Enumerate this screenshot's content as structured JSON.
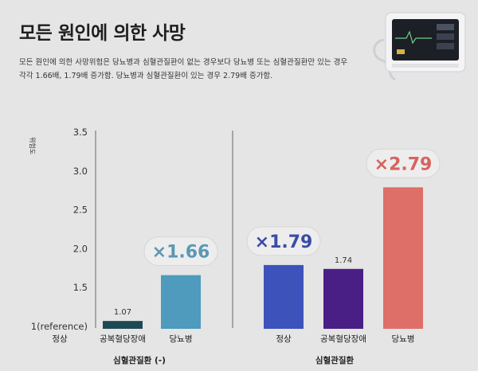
{
  "header": {
    "title": "모든 원인에 의한 사망",
    "description_line1": "모든 원인에 의한 사망위험은 당뇨병과 심혈관질환이 없는 경우보다 당뇨병 또는 심혈관질환만 있는 경우",
    "description_line2": "각각 1.66배, 1.79배 증가함. 당뇨병과 심혈관질환이 있는 경우 2.79배 증가함."
  },
  "chart_data": {
    "type": "bar",
    "title": "",
    "ylabel": "위험도",
    "ylim": [
      1,
      3.5
    ],
    "yticks": [
      "1(reference)",
      "1.5",
      "2.0",
      "2.5",
      "3.0",
      "3.5"
    ],
    "ytick_values": [
      1,
      1.5,
      2.0,
      2.5,
      3.0,
      3.5
    ],
    "grid": false,
    "groups": [
      {
        "label": "심혈관질환 (-)",
        "categories": [
          "정상",
          "공복혈당장애",
          "당뇨병"
        ],
        "values": [
          1,
          1.07,
          1.66
        ],
        "value_labels": [
          "",
          "1.07",
          ""
        ],
        "badges": [
          "",
          "",
          "×1.66"
        ],
        "colors": [
          "#e4e5e4",
          "#1d4954",
          "#4e9bbd"
        ]
      },
      {
        "label": "심혈관질환",
        "categories": [
          "정상",
          "공복혈당장애",
          "당뇨병"
        ],
        "values": [
          1.79,
          1.74,
          2.79
        ],
        "value_labels": [
          "",
          "1.74",
          ""
        ],
        "badges": [
          "×1.79",
          "",
          "×2.79"
        ],
        "colors": [
          "#3d53bb",
          "#4a1f85",
          "#de6e68"
        ]
      }
    ],
    "badge_text_colors": {
      "×1.66": "#5b98b3",
      "×1.79": "#3a4ca6",
      "×2.79": "#d8625d"
    }
  },
  "image": {
    "icon": "medical-monitor-device-icon"
  }
}
